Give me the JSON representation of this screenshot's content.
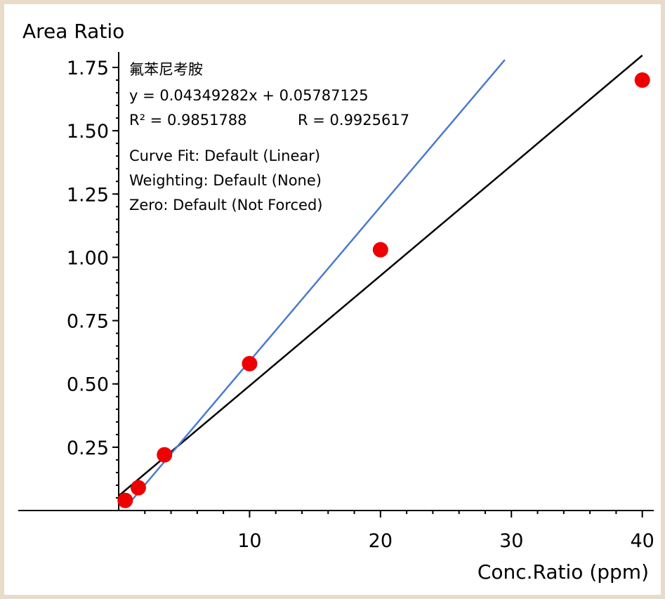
{
  "chart_data": {
    "type": "scatter",
    "ylabel": "Area Ratio",
    "xlabel": "Conc.Ratio (ppm)",
    "xlim": [
      0,
      40.5
    ],
    "ylim": [
      0,
      1.8
    ],
    "x_ticks": [
      10,
      20,
      30,
      40
    ],
    "y_ticks": [
      0.25,
      0.5,
      0.75,
      1.0,
      1.25,
      1.5,
      1.75
    ],
    "y_tick_labels": [
      "0.25",
      "0.50",
      "0.75",
      "1.00",
      "1.25",
      "1.50",
      "1.75"
    ],
    "x_tick_labels": [
      "10",
      "20",
      "30",
      "40"
    ],
    "points": {
      "x": [
        0.5,
        1.5,
        3.5,
        10,
        20,
        40
      ],
      "y": [
        0.04,
        0.09,
        0.22,
        0.58,
        1.03,
        1.7
      ],
      "color": "#ee0000"
    },
    "lines": [
      {
        "x1": 0,
        "y1": 0.0579,
        "x2": 40,
        "y2": 1.7976,
        "color": "#000000"
      },
      {
        "x1": 0.5,
        "y1": 0.01,
        "x2": 29.5,
        "y2": 1.78,
        "color": "#4a7bd0"
      }
    ],
    "annotations": {
      "compound": "氟苯尼考胺",
      "equation": "y = 0.04349282x + 0.05787125",
      "r_squared": "R² = 0.9851788",
      "r_value": "R = 0.9925617",
      "curve_fit": "Curve Fit: Default (Linear)",
      "weighting": "Weighting: Default (None)",
      "zero": "Zero: Default (Not Forced)"
    }
  }
}
